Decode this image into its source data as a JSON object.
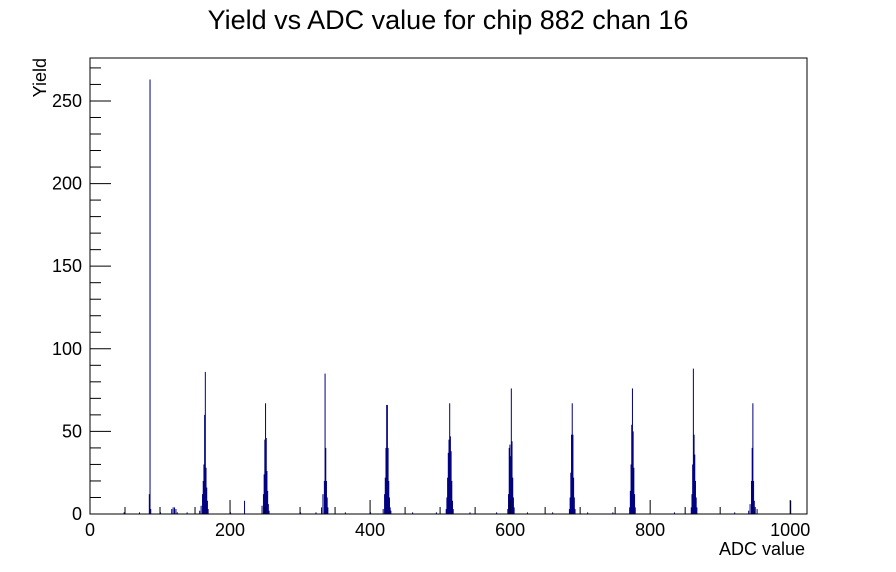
{
  "chart_data": {
    "type": "bar",
    "title": "Yield vs ADC value for chip 882 chan 16",
    "xlabel": "ADC value",
    "ylabel": "Yield",
    "xlim": [
      0,
      1024
    ],
    "ylim": [
      0,
      276
    ],
    "x_ticks": [
      0,
      200,
      400,
      600,
      800,
      1000
    ],
    "y_ticks": [
      0,
      50,
      100,
      150,
      200,
      250
    ],
    "grid": false,
    "legend": "none",
    "colors": {
      "series": "#000080",
      "axes": "#000000"
    },
    "series": [
      {
        "points": [
          {
            "x": 48,
            "y": 1
          },
          {
            "x": 70,
            "y": 1
          },
          {
            "x": 84,
            "y": 12
          },
          {
            "x": 85,
            "y": 263
          },
          {
            "x": 86,
            "y": 3
          },
          {
            "x": 100,
            "y": 1
          },
          {
            "x": 116,
            "y": 3
          },
          {
            "x": 118,
            "y": 4
          },
          {
            "x": 120,
            "y": 4
          },
          {
            "x": 122,
            "y": 3
          },
          {
            "x": 124,
            "y": 1
          },
          {
            "x": 138,
            "y": 1
          },
          {
            "x": 156,
            "y": 2
          },
          {
            "x": 158,
            "y": 5
          },
          {
            "x": 160,
            "y": 12
          },
          {
            "x": 161,
            "y": 20
          },
          {
            "x": 162,
            "y": 30
          },
          {
            "x": 163,
            "y": 60
          },
          {
            "x": 164,
            "y": 86
          },
          {
            "x": 165,
            "y": 28
          },
          {
            "x": 166,
            "y": 16
          },
          {
            "x": 167,
            "y": 8
          },
          {
            "x": 168,
            "y": 3
          },
          {
            "x": 200,
            "y": 1
          },
          {
            "x": 220,
            "y": 8
          },
          {
            "x": 245,
            "y": 5
          },
          {
            "x": 247,
            "y": 12
          },
          {
            "x": 248,
            "y": 24
          },
          {
            "x": 249,
            "y": 45
          },
          {
            "x": 250,
            "y": 67
          },
          {
            "x": 251,
            "y": 46
          },
          {
            "x": 252,
            "y": 26
          },
          {
            "x": 253,
            "y": 14
          },
          {
            "x": 254,
            "y": 6
          },
          {
            "x": 255,
            "y": 2
          },
          {
            "x": 300,
            "y": 1
          },
          {
            "x": 322,
            "y": 1
          },
          {
            "x": 330,
            "y": 4
          },
          {
            "x": 332,
            "y": 12
          },
          {
            "x": 334,
            "y": 20
          },
          {
            "x": 335,
            "y": 85
          },
          {
            "x": 336,
            "y": 40
          },
          {
            "x": 337,
            "y": 20
          },
          {
            "x": 338,
            "y": 10
          },
          {
            "x": 339,
            "y": 4
          },
          {
            "x": 364,
            "y": 1
          },
          {
            "x": 400,
            "y": 1
          },
          {
            "x": 418,
            "y": 3
          },
          {
            "x": 420,
            "y": 12
          },
          {
            "x": 421,
            "y": 22
          },
          {
            "x": 422,
            "y": 40
          },
          {
            "x": 423,
            "y": 66
          },
          {
            "x": 424,
            "y": 66
          },
          {
            "x": 425,
            "y": 40
          },
          {
            "x": 426,
            "y": 20
          },
          {
            "x": 427,
            "y": 10
          },
          {
            "x": 428,
            "y": 4
          },
          {
            "x": 429,
            "y": 2
          },
          {
            "x": 460,
            "y": 1
          },
          {
            "x": 494,
            "y": 1
          },
          {
            "x": 508,
            "y": 3
          },
          {
            "x": 509,
            "y": 10
          },
          {
            "x": 510,
            "y": 22
          },
          {
            "x": 511,
            "y": 37
          },
          {
            "x": 512,
            "y": 45
          },
          {
            "x": 513,
            "y": 67
          },
          {
            "x": 514,
            "y": 47
          },
          {
            "x": 515,
            "y": 38
          },
          {
            "x": 516,
            "y": 20
          },
          {
            "x": 517,
            "y": 8
          },
          {
            "x": 518,
            "y": 3
          },
          {
            "x": 542,
            "y": 1
          },
          {
            "x": 580,
            "y": 1
          },
          {
            "x": 596,
            "y": 3
          },
          {
            "x": 597,
            "y": 12
          },
          {
            "x": 598,
            "y": 40
          },
          {
            "x": 599,
            "y": 42
          },
          {
            "x": 600,
            "y": 35
          },
          {
            "x": 601,
            "y": 76
          },
          {
            "x": 602,
            "y": 44
          },
          {
            "x": 603,
            "y": 22
          },
          {
            "x": 604,
            "y": 10
          },
          {
            "x": 605,
            "y": 4
          },
          {
            "x": 624,
            "y": 1
          },
          {
            "x": 660,
            "y": 1
          },
          {
            "x": 684,
            "y": 3
          },
          {
            "x": 685,
            "y": 10
          },
          {
            "x": 686,
            "y": 25
          },
          {
            "x": 687,
            "y": 48
          },
          {
            "x": 688,
            "y": 67
          },
          {
            "x": 689,
            "y": 48
          },
          {
            "x": 690,
            "y": 22
          },
          {
            "x": 691,
            "y": 10
          },
          {
            "x": 692,
            "y": 3
          },
          {
            "x": 710,
            "y": 1
          },
          {
            "x": 746,
            "y": 1
          },
          {
            "x": 770,
            "y": 4
          },
          {
            "x": 771,
            "y": 14
          },
          {
            "x": 772,
            "y": 30
          },
          {
            "x": 773,
            "y": 54
          },
          {
            "x": 774,
            "y": 76
          },
          {
            "x": 775,
            "y": 50
          },
          {
            "x": 776,
            "y": 28
          },
          {
            "x": 777,
            "y": 12
          },
          {
            "x": 778,
            "y": 4
          },
          {
            "x": 834,
            "y": 1
          },
          {
            "x": 858,
            "y": 4
          },
          {
            "x": 859,
            "y": 12
          },
          {
            "x": 860,
            "y": 30
          },
          {
            "x": 861,
            "y": 88
          },
          {
            "x": 862,
            "y": 48
          },
          {
            "x": 863,
            "y": 36
          },
          {
            "x": 864,
            "y": 20
          },
          {
            "x": 865,
            "y": 10
          },
          {
            "x": 866,
            "y": 4
          },
          {
            "x": 920,
            "y": 1
          },
          {
            "x": 940,
            "y": 2
          },
          {
            "x": 942,
            "y": 6
          },
          {
            "x": 944,
            "y": 20
          },
          {
            "x": 945,
            "y": 40
          },
          {
            "x": 946,
            "y": 67
          },
          {
            "x": 947,
            "y": 20
          },
          {
            "x": 948,
            "y": 8
          },
          {
            "x": 949,
            "y": 2
          },
          {
            "x": 952,
            "y": 3
          },
          {
            "x": 1000,
            "y": 8
          }
        ]
      }
    ]
  }
}
